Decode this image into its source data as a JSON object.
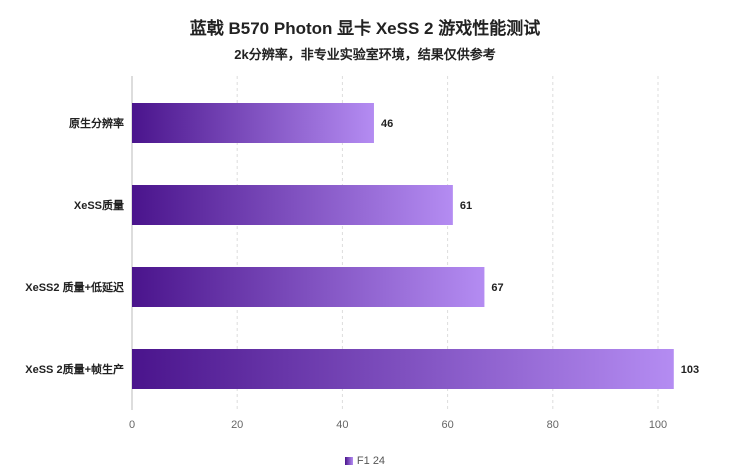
{
  "title": "蓝戟 B570 Photon  显卡 XeSS 2 游戏性能测试",
  "subtitle": "2k分辨率，非专业实验室环境，结果仅供参考",
  "colors": {
    "bar_start": "#4a148c",
    "bar_end": "#b48cf2",
    "grid": "#dddddd",
    "axis": "#bbbbbb"
  },
  "chart_data": {
    "type": "bar",
    "orientation": "horizontal",
    "title": "蓝戟 B570 Photon  显卡 XeSS 2 游戏性能测试",
    "subtitle": "2k分辨率，非专业实验室环境，结果仅供参考",
    "categories": [
      "原生分辨率",
      "XeSS质量",
      "XeSS2 质量+低延迟",
      "XeSS 2质量+帧生产"
    ],
    "series": [
      {
        "name": "F1 24",
        "values": [
          46,
          61,
          67,
          103
        ]
      }
    ],
    "xlim": [
      0,
      105
    ],
    "xticks": [
      0,
      20,
      40,
      60,
      80,
      100
    ],
    "grid": true,
    "legend": "bottom-center"
  }
}
